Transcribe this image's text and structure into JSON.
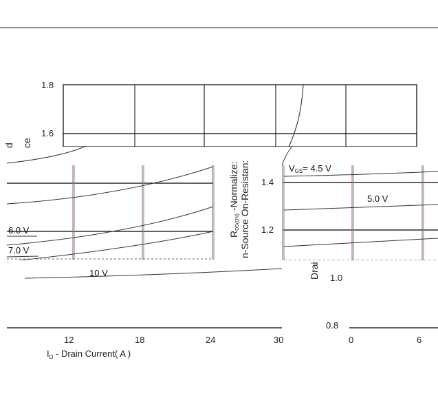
{
  "chart_data": {
    "type": "line",
    "xlabel": "Iₒ - Drain Current( A )",
    "xlabel_main": "I",
    "xlabel_sub": "D",
    "xlabel_rest": " - Drain Current( A )",
    "ylabel_line1": "R",
    "ylabel_line1_sub": "DS(ON)",
    "ylabel_line1_rest": " -Normalize:",
    "ylabel_line2": "n-Source On-Resistan:",
    "ylabel_left_fragment": "ce",
    "ylabel_left_fragment2": "d",
    "drain_fragment": "Drai",
    "y_ticks_top": [
      "1.8",
      "1.6"
    ],
    "y_ticks_mid": [
      "1.4",
      "1.2"
    ],
    "y_ticks_bottom": [
      "1.0",
      "0.8"
    ],
    "x_ticks": [
      "12",
      "18",
      "24",
      "30",
      "0",
      "6"
    ],
    "series": [
      {
        "name": "V GS= 4.5 V",
        "x": [
          0,
          6
        ],
        "y": [
          1.41,
          1.44
        ]
      },
      {
        "name": "5.0 V",
        "x": [
          0,
          6
        ],
        "y": [
          1.28,
          1.3
        ]
      },
      {
        "name": "6.0 V",
        "x": [
          0,
          6
        ],
        "y": [
          1.13,
          1.16
        ]
      },
      {
        "name": "7.0 V",
        "x": [
          0,
          6
        ],
        "y": [
          1.05,
          1.08
        ]
      },
      {
        "name": "10 V",
        "x": [
          6,
          30
        ],
        "y": [
          0.99,
          1.02
        ]
      }
    ],
    "labels": {
      "vgs_prefix": "V",
      "vgs_sub": "GS",
      "vgs_rest": "= 4.5 V",
      "v5": "5.0 V",
      "v6": "6.0 V",
      "v7": "7.0 V",
      "v10": "10 V"
    },
    "grid": true,
    "legend": "none"
  }
}
